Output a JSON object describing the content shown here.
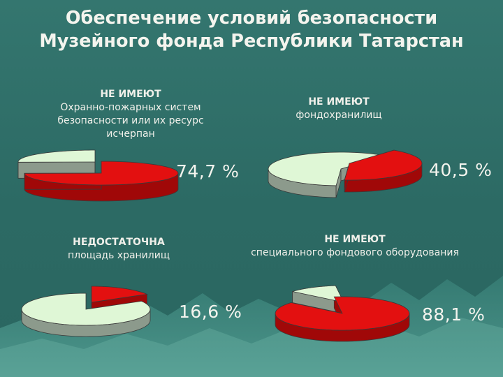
{
  "title": {
    "line1": "Обеспечение условий безопасности",
    "line2": "Музейного фонда Республики Татарстан"
  },
  "colors": {
    "background": "#2f6f6a",
    "missing": "#e31010",
    "missing_side": "#a00808",
    "present": "#dff7d6",
    "present_side": "#8c9a8c",
    "text": "#f0f0ea"
  },
  "chart_data": [
    {
      "type": "pie",
      "heading": "НЕ ИМЕЮТ",
      "label": "Охранно-пожарных систем безопасности или их ресурс исчерпан",
      "value_label": "74,7 %",
      "slices": [
        {
          "category": "НЕ ИМЕЮТ",
          "value": 74.7,
          "color": "#e31010"
        },
        {
          "category": "",
          "value": 25.3,
          "color": "#dff7d6"
        }
      ]
    },
    {
      "type": "pie",
      "heading": "НЕ ИМЕЮТ",
      "label": "фондохранилищ",
      "value_label": "40,5 %",
      "slices": [
        {
          "category": "НЕ ИМЕЮТ",
          "value": 40.5,
          "color": "#e31010"
        },
        {
          "category": "",
          "value": 59.5,
          "color": "#dff7d6"
        }
      ]
    },
    {
      "type": "pie",
      "heading": "НЕДОСТАТОЧНА",
      "label": "площадь хранилищ",
      "value_label": "16,6 %",
      "slices": [
        {
          "category": "НЕДОСТАТОЧНА",
          "value": 16.6,
          "color": "#e31010"
        },
        {
          "category": "",
          "value": 83.4,
          "color": "#dff7d6"
        }
      ]
    },
    {
      "type": "pie",
      "heading": "НЕ ИМЕЮТ",
      "label": "специального фондового оборудования",
      "value_label": "88,1 %",
      "slices": [
        {
          "category": "НЕ ИМЕЮТ",
          "value": 88.1,
          "color": "#e31010"
        },
        {
          "category": "",
          "value": 11.9,
          "color": "#dff7d6"
        }
      ]
    }
  ]
}
